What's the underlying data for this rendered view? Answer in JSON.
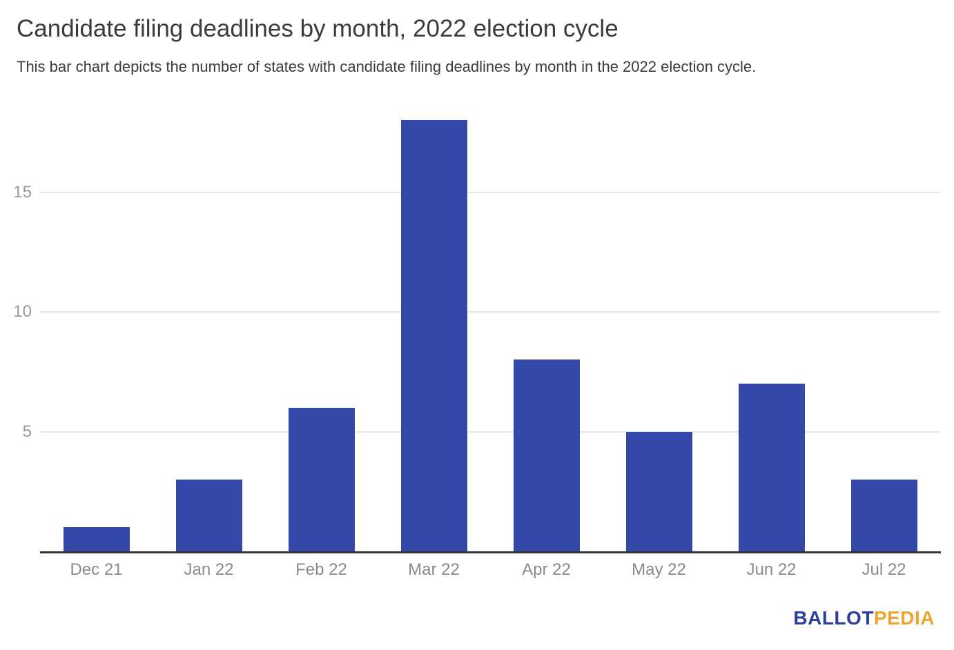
{
  "chart_data": {
    "type": "bar",
    "title": "Candidate filing deadlines by month, 2022 election cycle",
    "subtitle": "This bar chart depicts the number of states with candidate filing deadlines by month in the 2022 election cycle.",
    "categories": [
      "Dec 21",
      "Jan 22",
      "Feb 22",
      "Mar 22",
      "Apr 22",
      "May 22",
      "Jun 22",
      "Jul 22"
    ],
    "values": [
      1,
      3,
      6,
      18,
      8,
      5,
      7,
      3
    ],
    "xlabel": "",
    "ylabel": "",
    "yticks": [
      5,
      10,
      15
    ],
    "ylim": [
      0,
      18.7
    ],
    "grid": true,
    "legend": "none",
    "bar_color": "#3348a8",
    "gridline_color": "#e6e6e6",
    "axis_line_color": "#333333",
    "tick_label_color": "#8a8a8a"
  },
  "branding": {
    "logo_part1": "BALLOT",
    "logo_part2": "PEDIA",
    "logo_color1": "#2b409e",
    "logo_color2": "#f0a32f"
  }
}
